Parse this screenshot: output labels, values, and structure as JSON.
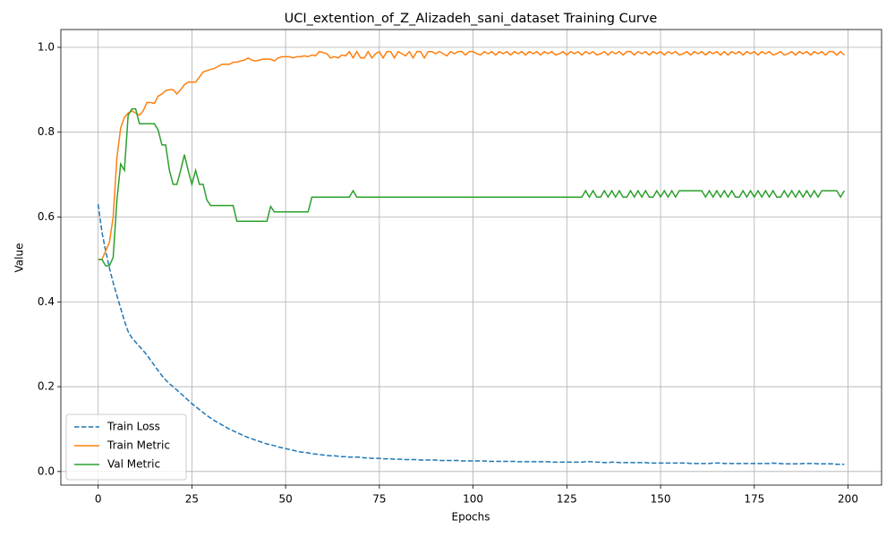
{
  "chart_data": {
    "type": "line",
    "title": "UCI_extention_of_Z_Alizadeh_sani_dataset Training Curve",
    "xlabel": "Epochs",
    "ylabel": "Value",
    "x": [
      0,
      1,
      2,
      3,
      4,
      5,
      6,
      7,
      8,
      9,
      10,
      11,
      12,
      13,
      14,
      15,
      16,
      17,
      18,
      19,
      20,
      21,
      22,
      23,
      24,
      25,
      26,
      27,
      28,
      29,
      30,
      31,
      32,
      33,
      34,
      35,
      36,
      37,
      38,
      39,
      40,
      41,
      42,
      43,
      44,
      45,
      46,
      47,
      48,
      49,
      50,
      51,
      52,
      53,
      54,
      55,
      56,
      57,
      58,
      59,
      60,
      61,
      62,
      63,
      64,
      65,
      66,
      67,
      68,
      69,
      70,
      71,
      72,
      73,
      74,
      75,
      76,
      77,
      78,
      79,
      80,
      81,
      82,
      83,
      84,
      85,
      86,
      87,
      88,
      89,
      90,
      91,
      92,
      93,
      94,
      95,
      96,
      97,
      98,
      99,
      100,
      101,
      102,
      103,
      104,
      105,
      106,
      107,
      108,
      109,
      110,
      111,
      112,
      113,
      114,
      115,
      116,
      117,
      118,
      119,
      120,
      121,
      122,
      123,
      124,
      125,
      126,
      127,
      128,
      129,
      130,
      131,
      132,
      133,
      134,
      135,
      136,
      137,
      138,
      139,
      140,
      141,
      142,
      143,
      144,
      145,
      146,
      147,
      148,
      149,
      150,
      151,
      152,
      153,
      154,
      155,
      156,
      157,
      158,
      159,
      160,
      161,
      162,
      163,
      164,
      165,
      166,
      167,
      168,
      169,
      170,
      171,
      172,
      173,
      174,
      175,
      176,
      177,
      178,
      179,
      180,
      181,
      182,
      183,
      184,
      185,
      186,
      187,
      188,
      189,
      190,
      191,
      192,
      193,
      194,
      195,
      196,
      197,
      198,
      199
    ],
    "series": [
      {
        "name": "Train Loss",
        "color": "#1f77b4",
        "linestyle": "dashed",
        "values": [
          0.63,
          0.565,
          0.52,
          0.48,
          0.445,
          0.415,
          0.385,
          0.355,
          0.33,
          0.315,
          0.305,
          0.295,
          0.285,
          0.275,
          0.262,
          0.25,
          0.238,
          0.226,
          0.216,
          0.207,
          0.2,
          0.192,
          0.184,
          0.176,
          0.168,
          0.16,
          0.153,
          0.146,
          0.139,
          0.132,
          0.126,
          0.12,
          0.115,
          0.11,
          0.105,
          0.1,
          0.096,
          0.092,
          0.088,
          0.084,
          0.08,
          0.077,
          0.074,
          0.071,
          0.068,
          0.065,
          0.063,
          0.061,
          0.058,
          0.056,
          0.054,
          0.052,
          0.05,
          0.048,
          0.046,
          0.045,
          0.044,
          0.042,
          0.041,
          0.04,
          0.039,
          0.038,
          0.037,
          0.037,
          0.036,
          0.035,
          0.035,
          0.034,
          0.034,
          0.034,
          0.034,
          0.032,
          0.032,
          0.031,
          0.031,
          0.031,
          0.03,
          0.03,
          0.03,
          0.029,
          0.029,
          0.029,
          0.028,
          0.028,
          0.028,
          0.028,
          0.027,
          0.027,
          0.027,
          0.027,
          0.027,
          0.026,
          0.026,
          0.026,
          0.026,
          0.026,
          0.026,
          0.025,
          0.025,
          0.025,
          0.025,
          0.025,
          0.025,
          0.025,
          0.024,
          0.024,
          0.024,
          0.024,
          0.024,
          0.024,
          0.024,
          0.024,
          0.023,
          0.023,
          0.023,
          0.023,
          0.023,
          0.023,
          0.023,
          0.023,
          0.023,
          0.022,
          0.022,
          0.022,
          0.022,
          0.022,
          0.022,
          0.022,
          0.022,
          0.022,
          0.023,
          0.023,
          0.023,
          0.022,
          0.022,
          0.021,
          0.021,
          0.022,
          0.022,
          0.021,
          0.021,
          0.021,
          0.021,
          0.021,
          0.021,
          0.021,
          0.021,
          0.02,
          0.02,
          0.02,
          0.02,
          0.02,
          0.02,
          0.02,
          0.02,
          0.02,
          0.02,
          0.02,
          0.019,
          0.019,
          0.019,
          0.019,
          0.019,
          0.019,
          0.02,
          0.02,
          0.02,
          0.019,
          0.019,
          0.019,
          0.019,
          0.019,
          0.019,
          0.019,
          0.019,
          0.019,
          0.019,
          0.019,
          0.019,
          0.019,
          0.02,
          0.019,
          0.019,
          0.018,
          0.018,
          0.018,
          0.018,
          0.018,
          0.019,
          0.019,
          0.019,
          0.019,
          0.018,
          0.018,
          0.018,
          0.018,
          0.018,
          0.017,
          0.017,
          0.017
        ]
      },
      {
        "name": "Train Metric",
        "color": "#ff7f0e",
        "linestyle": "solid",
        "values": [
          0.5,
          0.5,
          0.52,
          0.54,
          0.6,
          0.74,
          0.81,
          0.835,
          0.845,
          0.85,
          0.845,
          0.84,
          0.85,
          0.87,
          0.87,
          0.868,
          0.885,
          0.89,
          0.898,
          0.9,
          0.9,
          0.89,
          0.9,
          0.912,
          0.918,
          0.918,
          0.918,
          0.93,
          0.942,
          0.945,
          0.948,
          0.95,
          0.955,
          0.96,
          0.96,
          0.96,
          0.965,
          0.965,
          0.968,
          0.97,
          0.975,
          0.97,
          0.968,
          0.97,
          0.972,
          0.972,
          0.972,
          0.968,
          0.975,
          0.978,
          0.978,
          0.978,
          0.975,
          0.978,
          0.978,
          0.98,
          0.978,
          0.982,
          0.98,
          0.99,
          0.988,
          0.985,
          0.975,
          0.978,
          0.975,
          0.982,
          0.98,
          0.99,
          0.975,
          0.99,
          0.975,
          0.975,
          0.99,
          0.975,
          0.985,
          0.99,
          0.975,
          0.99,
          0.99,
          0.975,
          0.99,
          0.985,
          0.98,
          0.99,
          0.975,
          0.99,
          0.99,
          0.975,
          0.99,
          0.99,
          0.985,
          0.99,
          0.985,
          0.98,
          0.99,
          0.985,
          0.99,
          0.99,
          0.982,
          0.99,
          0.99,
          0.985,
          0.982,
          0.99,
          0.985,
          0.99,
          0.982,
          0.99,
          0.985,
          0.99,
          0.982,
          0.99,
          0.985,
          0.99,
          0.982,
          0.99,
          0.985,
          0.99,
          0.982,
          0.99,
          0.985,
          0.99,
          0.982,
          0.985,
          0.99,
          0.982,
          0.99,
          0.985,
          0.99,
          0.982,
          0.99,
          0.985,
          0.99,
          0.982,
          0.985,
          0.99,
          0.982,
          0.99,
          0.985,
          0.99,
          0.982,
          0.99,
          0.99,
          0.982,
          0.99,
          0.985,
          0.99,
          0.982,
          0.99,
          0.985,
          0.99,
          0.982,
          0.99,
          0.985,
          0.99,
          0.982,
          0.985,
          0.99,
          0.982,
          0.99,
          0.985,
          0.99,
          0.982,
          0.99,
          0.985,
          0.99,
          0.982,
          0.99,
          0.982,
          0.99,
          0.985,
          0.99,
          0.982,
          0.99,
          0.985,
          0.99,
          0.982,
          0.99,
          0.985,
          0.99,
          0.982,
          0.985,
          0.99,
          0.982,
          0.985,
          0.99,
          0.982,
          0.99,
          0.985,
          0.99,
          0.982,
          0.99,
          0.985,
          0.99,
          0.982,
          0.99,
          0.99,
          0.982,
          0.99,
          0.982
        ]
      },
      {
        "name": "Val Metric",
        "color": "#2ca02c",
        "linestyle": "solid",
        "values": [
          0.5,
          0.5,
          0.485,
          0.485,
          0.505,
          0.64,
          0.725,
          0.71,
          0.84,
          0.855,
          0.855,
          0.82,
          0.82,
          0.82,
          0.82,
          0.82,
          0.805,
          0.77,
          0.77,
          0.71,
          0.677,
          0.677,
          0.71,
          0.747,
          0.71,
          0.677,
          0.71,
          0.677,
          0.677,
          0.64,
          0.627,
          0.627,
          0.627,
          0.627,
          0.627,
          0.627,
          0.627,
          0.59,
          0.59,
          0.59,
          0.59,
          0.59,
          0.59,
          0.59,
          0.59,
          0.59,
          0.625,
          0.612,
          0.612,
          0.612,
          0.612,
          0.612,
          0.612,
          0.612,
          0.612,
          0.612,
          0.612,
          0.647,
          0.647,
          0.647,
          0.647,
          0.647,
          0.647,
          0.647,
          0.647,
          0.647,
          0.647,
          0.647,
          0.662,
          0.647,
          0.647,
          0.647,
          0.647,
          0.647,
          0.647,
          0.647,
          0.647,
          0.647,
          0.647,
          0.647,
          0.647,
          0.647,
          0.647,
          0.647,
          0.647,
          0.647,
          0.647,
          0.647,
          0.647,
          0.647,
          0.647,
          0.647,
          0.647,
          0.647,
          0.647,
          0.647,
          0.647,
          0.647,
          0.647,
          0.647,
          0.647,
          0.647,
          0.647,
          0.647,
          0.647,
          0.647,
          0.647,
          0.647,
          0.647,
          0.647,
          0.647,
          0.647,
          0.647,
          0.647,
          0.647,
          0.647,
          0.647,
          0.647,
          0.647,
          0.647,
          0.647,
          0.647,
          0.647,
          0.647,
          0.647,
          0.647,
          0.647,
          0.647,
          0.647,
          0.647,
          0.662,
          0.647,
          0.662,
          0.647,
          0.647,
          0.662,
          0.647,
          0.662,
          0.647,
          0.662,
          0.647,
          0.647,
          0.662,
          0.647,
          0.662,
          0.647,
          0.662,
          0.647,
          0.647,
          0.662,
          0.647,
          0.662,
          0.647,
          0.662,
          0.647,
          0.662,
          0.662,
          0.662,
          0.662,
          0.662,
          0.662,
          0.662,
          0.647,
          0.662,
          0.647,
          0.662,
          0.647,
          0.662,
          0.647,
          0.662,
          0.647,
          0.647,
          0.662,
          0.647,
          0.662,
          0.647,
          0.662,
          0.647,
          0.662,
          0.647,
          0.662,
          0.647,
          0.647,
          0.662,
          0.647,
          0.662,
          0.647,
          0.662,
          0.647,
          0.662,
          0.647,
          0.662,
          0.647,
          0.662,
          0.662,
          0.662,
          0.662,
          0.662,
          0.647,
          0.662
        ]
      }
    ],
    "xlim": [
      -9.95,
      208.95
    ],
    "xticks": [
      0,
      25,
      50,
      75,
      100,
      125,
      150,
      175,
      200
    ],
    "ylim": [
      -0.032,
      1.042
    ],
    "yticks": [
      {
        "value": 0,
        "label": "0.0"
      },
      0.2,
      0.4,
      0.6,
      0.8,
      {
        "value": 1,
        "label": "1.0"
      }
    ],
    "grid": true,
    "legend": "lower left"
  }
}
